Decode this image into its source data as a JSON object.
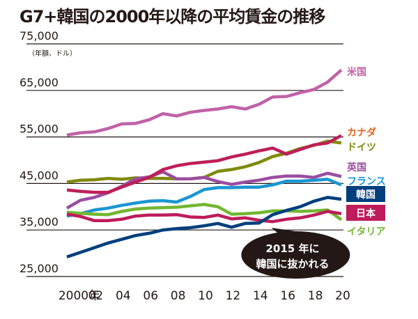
{
  "chart_data": {
    "type": "line",
    "title": "G7+韓国の2000年以降の平均賃金の推移",
    "unit_label": "（年額、ドル）",
    "xlabel": "",
    "ylabel": "",
    "ylim": [
      25000,
      75000
    ],
    "yticks": [
      75000,
      65000,
      55000,
      45000,
      35000,
      25000
    ],
    "ytick_labels": [
      "75,000",
      "65,000",
      "55,000",
      "45,000",
      "35,000",
      "25,000"
    ],
    "x": [
      2000,
      2001,
      2002,
      2003,
      2004,
      2005,
      2006,
      2007,
      2008,
      2009,
      2010,
      2011,
      2012,
      2013,
      2014,
      2015,
      2016,
      2017,
      2018,
      2019,
      2020
    ],
    "xticks": [
      2000,
      2002,
      2004,
      2006,
      2008,
      2010,
      2012,
      2014,
      2016,
      2018,
      2020
    ],
    "xtick_labels": [
      "2000年",
      "02",
      "04",
      "06",
      "08",
      "10",
      "12",
      "14",
      "16",
      "18",
      "20"
    ],
    "grid": true,
    "series": [
      {
        "name": "米国",
        "color": "#c062a8",
        "label_style": "text",
        "values": [
          55400,
          55900,
          56100,
          56800,
          57800,
          57900,
          58700,
          60000,
          59500,
          60300,
          60700,
          61000,
          61500,
          61000,
          62000,
          63600,
          63700,
          64500,
          65200,
          66800,
          69400
        ]
      },
      {
        "name": "カナダ",
        "color": "#be1e5a",
        "label_color": "#e8601c",
        "label_style": "text",
        "values": [
          43600,
          43300,
          43100,
          43100,
          44200,
          45300,
          46300,
          48000,
          48800,
          49300,
          49600,
          49900,
          50700,
          51300,
          52000,
          52600,
          51300,
          52300,
          53300,
          53700,
          55300
        ]
      },
      {
        "name": "ドイツ",
        "color": "#7f8a0c",
        "label_style": "text",
        "values": [
          45300,
          45700,
          45800,
          46100,
          45900,
          46200,
          46100,
          46100,
          46000,
          46000,
          46300,
          47600,
          48000,
          48600,
          49500,
          50800,
          51500,
          52500,
          53200,
          54100,
          53700
        ]
      },
      {
        "name": "英国",
        "color": "#9a4ea0",
        "label_style": "text",
        "values": [
          39700,
          41400,
          42000,
          43000,
          44400,
          46000,
          46400,
          47500,
          46000,
          46000,
          46300,
          45400,
          44800,
          45300,
          45700,
          46300,
          46600,
          46600,
          46300,
          47200,
          46500
        ]
      },
      {
        "name": "フランス",
        "color": "#1a96d2",
        "label_style": "text",
        "values": [
          38000,
          38500,
          39300,
          39700,
          40300,
          40800,
          41200,
          41300,
          41000,
          42200,
          43700,
          44100,
          44100,
          44200,
          44200,
          44700,
          45500,
          45500,
          45700,
          45900,
          44700
        ]
      },
      {
        "name": "韓国",
        "color": "#003f7d",
        "label_style": "box",
        "values": [
          29200,
          30200,
          31200,
          32200,
          33000,
          33800,
          34300,
          35000,
          35300,
          35500,
          35900,
          36400,
          35600,
          36400,
          36500,
          38300,
          39200,
          40000,
          41200,
          42000,
          41600
        ]
      },
      {
        "name": "日本",
        "color": "#be1c5c",
        "label_style": "box",
        "values": [
          38400,
          37900,
          37000,
          37000,
          37300,
          38000,
          38200,
          38200,
          38300,
          37800,
          37700,
          38200,
          37400,
          37600,
          37100,
          36800,
          37300,
          37600,
          38200,
          39000,
          38500
        ]
      },
      {
        "name": "イタリア",
        "color": "#72b731",
        "label_style": "text",
        "values": [
          38800,
          38600,
          38400,
          38300,
          39000,
          39500,
          39700,
          39800,
          39900,
          40200,
          40500,
          40000,
          38400,
          38500,
          38700,
          39100,
          39100,
          39000,
          39100,
          39300,
          37200
        ]
      }
    ],
    "annotation": {
      "lines": [
        "2015 年に",
        "韓国に抜かれる"
      ],
      "points_to_year": 2015
    }
  }
}
